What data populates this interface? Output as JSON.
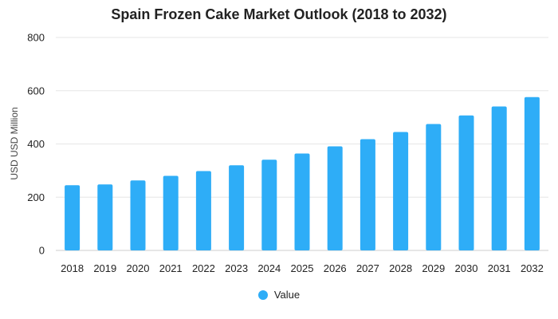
{
  "chart_data": {
    "type": "bar",
    "title": "Spain Frozen Cake Market Outlook (2018 to 2032)",
    "xlabel": "",
    "ylabel": "USD USD Million",
    "ylim": [
      0,
      800
    ],
    "yticks": [
      0,
      200,
      400,
      600,
      800
    ],
    "categories": [
      "2018",
      "2019",
      "2020",
      "2021",
      "2022",
      "2023",
      "2024",
      "2025",
      "2026",
      "2027",
      "2028",
      "2029",
      "2030",
      "2031",
      "2032"
    ],
    "series": [
      {
        "name": "Value",
        "values": [
          245,
          248,
          263,
          280,
          298,
          320,
          341,
          364,
          391,
          418,
          445,
          475,
          507,
          541,
          576
        ]
      }
    ],
    "grid": true,
    "legend_position": "bottom",
    "colors": {
      "bar": "#2eadf7"
    }
  }
}
